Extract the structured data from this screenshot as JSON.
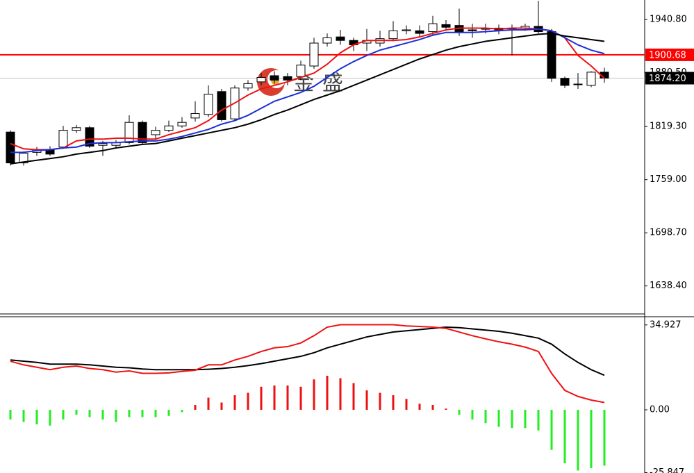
{
  "chart_data": [
    {
      "type": "candlestick",
      "watermark": "金盛",
      "open": [
        1813,
        1778,
        1790,
        1793,
        1796,
        1815,
        1818,
        1798,
        1798,
        1801,
        1824,
        1810,
        1815,
        1820,
        1829,
        1833,
        1859,
        1828,
        1863,
        1870,
        1877,
        1876,
        1876,
        1888,
        1914,
        1921,
        1917,
        1914,
        1914,
        1919,
        1928,
        1928,
        1927,
        1935,
        1934,
        1929,
        1930,
        1929,
        1930,
        1931,
        1933,
        1927,
        1874,
        1867,
        1866,
        1881
      ],
      "high": [
        1815,
        1791,
        1796,
        1797,
        1820,
        1821,
        1820,
        1803,
        1804,
        1832,
        1826,
        1819,
        1826,
        1830,
        1848,
        1866,
        1862,
        1866,
        1872,
        1880,
        1882,
        1880,
        1894,
        1920,
        1925,
        1929,
        1920,
        1930,
        1928,
        1939,
        1934,
        1934,
        1945,
        1940,
        1953,
        1936,
        1936,
        1935,
        1935,
        1936,
        1962,
        1930,
        1876,
        1880,
        1882,
        1886
      ],
      "low": [
        1775,
        1775,
        1786,
        1786,
        1794,
        1812,
        1795,
        1786,
        1795,
        1799,
        1799,
        1805,
        1813,
        1818,
        1825,
        1830,
        1825,
        1826,
        1860,
        1866,
        1868,
        1866,
        1872,
        1885,
        1910,
        1912,
        1905,
        1905,
        1910,
        1916,
        1924,
        1921,
        1922,
        1928,
        1922,
        1920,
        1925,
        1924,
        1900,
        1928,
        1925,
        1870,
        1863,
        1862,
        1864,
        1869
      ],
      "close": [
        1778,
        1789,
        1793,
        1788,
        1815,
        1818,
        1797,
        1800,
        1801,
        1824,
        1801,
        1815,
        1820,
        1824,
        1834,
        1856,
        1827,
        1863,
        1868,
        1875,
        1872,
        1872,
        1889,
        1914,
        1920,
        1917,
        1912,
        1917,
        1919,
        1928,
        1929,
        1925,
        1936,
        1932,
        1927,
        1928,
        1930.5,
        1931,
        1931,
        1933,
        1927,
        1874,
        1866,
        1867.5,
        1881,
        1874.2
      ],
      "up_color": "#ffffff",
      "down_color": "#000000",
      "series": [
        {
          "color": "#ee1111",
          "values": [
            1800,
            1794,
            1793,
            1793,
            1795,
            1803,
            1805,
            1805,
            1806,
            1806,
            1805,
            1805,
            1810,
            1814,
            1818,
            1826,
            1838,
            1846,
            1855,
            1862,
            1866,
            1870,
            1875,
            1880,
            1890,
            1903,
            1912,
            1917,
            1917,
            1917,
            1918,
            1921,
            1925,
            1929,
            1931,
            1931,
            1931,
            1930,
            1931,
            1931,
            1930,
            1928,
            1920,
            1900,
            1888,
            1874
          ]
        },
        {
          "color": "#1a2fd6",
          "values": [
            1790,
            1790,
            1792,
            1793,
            1795,
            1796,
            1800,
            1801,
            1801,
            1802,
            1803,
            1803,
            1805,
            1808,
            1812,
            1816,
            1822,
            1826,
            1832,
            1840,
            1848,
            1853,
            1858,
            1865,
            1875,
            1885,
            1893,
            1900,
            1906,
            1910,
            1914,
            1918,
            1923,
            1926,
            1926,
            1926,
            1927,
            1928,
            1929,
            1929,
            1930,
            1928,
            1920,
            1912,
            1906,
            1902
          ]
        },
        {
          "color": "#000000",
          "values": [
            1777,
            1779,
            1781,
            1783,
            1785,
            1788,
            1790,
            1792,
            1795,
            1797,
            1799,
            1800,
            1803,
            1806,
            1809,
            1812,
            1815,
            1818,
            1822,
            1827,
            1833,
            1838,
            1844,
            1850,
            1855,
            1860,
            1866,
            1872,
            1878,
            1884,
            1890,
            1896,
            1901,
            1906,
            1910,
            1913,
            1916,
            1918,
            1920,
            1922,
            1924,
            1925,
            1922,
            1920,
            1918,
            1916
          ]
        }
      ],
      "ylim": [
        1606.6,
        1962.9
      ],
      "yticks": [
        {
          "value": 1940.8,
          "label": "1940.80"
        },
        {
          "value": 1880.5,
          "label": "1880.50"
        },
        {
          "value": 1819.3,
          "label": "1819.30"
        },
        {
          "value": 1759,
          "label": "1759.00"
        },
        {
          "value": 1698.7,
          "label": "1698.70"
        },
        {
          "value": 1638.4,
          "label": "1638.40"
        }
      ],
      "price_lines": [
        {
          "value": 1900.68,
          "color": "#ff0000",
          "box_color": "#ff0000"
        },
        {
          "value": 1874.2,
          "label": "1874.20",
          "color": "#c0c0c0",
          "box_color": "#000000"
        }
      ]
    },
    {
      "type": "macd",
      "values": [
        -4,
        -5,
        -6,
        -6.5,
        -4,
        -2,
        -3,
        -4,
        -5,
        -3,
        -3,
        -3,
        -2.5,
        -1,
        2,
        5,
        3,
        6,
        7,
        9.5,
        10,
        10,
        9.5,
        12.5,
        14,
        13,
        11,
        8,
        7,
        6,
        4.5,
        2.5,
        2,
        0.5,
        -2,
        -4,
        -5.5,
        -7,
        -7.5,
        -7.5,
        -8.5,
        -16.5,
        -22,
        -25,
        -24,
        -23
      ],
      "positive_color": "#ee1111",
      "negative_color": "#22ee22",
      "series": [
        {
          "color": "#000000",
          "values": [
            20.5,
            20,
            19.5,
            18.8,
            18.8,
            18.8,
            18.5,
            18,
            17.5,
            17.3,
            16.8,
            16.5,
            16.5,
            16.5,
            16.5,
            16.7,
            17,
            17.5,
            18.2,
            19,
            20,
            21,
            22,
            23.5,
            25.5,
            27,
            28.5,
            30,
            31,
            32,
            32.5,
            33,
            33.5,
            34,
            33.8,
            33.3,
            32.8,
            32.3,
            31.5,
            30.5,
            29.5,
            27,
            23,
            19.5,
            16.5,
            14.2
          ]
        },
        {
          "color": "#ee1111",
          "values": [
            20,
            18.5,
            17.5,
            16.5,
            17.5,
            18,
            17,
            16.5,
            15.5,
            16,
            15,
            15,
            15.2,
            15.8,
            16.3,
            18.5,
            18.5,
            20.5,
            22,
            24,
            25.5,
            26,
            27.5,
            30.5,
            34,
            35,
            35,
            35,
            35,
            35,
            34.5,
            34.3,
            34,
            33.5,
            32,
            30.5,
            29.2,
            28,
            27,
            25.8,
            24,
            15,
            8,
            5.5,
            4,
            3
          ]
        }
      ],
      "ylim": [
        -26,
        38.3
      ],
      "yticks": [
        34.927,
        {
          "value": 0,
          "label": "0.00"
        },
        -25.847
      ]
    }
  ]
}
